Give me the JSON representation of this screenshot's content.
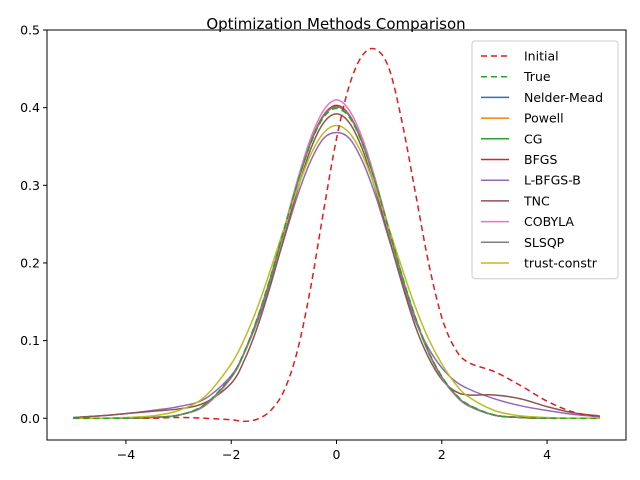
{
  "chart_data": {
    "type": "line",
    "title": "Optimization Methods Comparison",
    "xlabel": "",
    "ylabel": "",
    "xlim": [
      -5.5,
      5.5
    ],
    "ylim": [
      -0.028,
      0.5
    ],
    "xticks": [
      -4,
      -2,
      0,
      2,
      4
    ],
    "yticks": [
      0.0,
      0.1,
      0.2,
      0.3,
      0.4,
      0.5
    ],
    "xtick_labels": [
      "−4",
      "−2",
      "0",
      "2",
      "4"
    ],
    "ytick_labels": [
      "0.0",
      "0.1",
      "0.2",
      "0.3",
      "0.4",
      "0.5"
    ],
    "grid": false,
    "legend_position": "top-right",
    "x": [
      -5,
      -4.5,
      -4,
      -3.5,
      -3,
      -2.5,
      -2,
      -1.75,
      -1.5,
      -1.25,
      -1,
      -0.75,
      -0.5,
      -0.25,
      0,
      0.25,
      0.5,
      0.75,
      1,
      1.25,
      1.5,
      1.75,
      2,
      2.25,
      2.5,
      3,
      3.5,
      4,
      4.5,
      5
    ],
    "series": [
      {
        "name": "Initial",
        "color": "#e41a1c",
        "dash": "6,4",
        "values": [
          0.0,
          0.0,
          0.0,
          0.0,
          0.001,
          0.0,
          -0.002,
          -0.004,
          -0.001,
          0.01,
          0.035,
          0.085,
          0.165,
          0.265,
          0.36,
          0.43,
          0.468,
          0.475,
          0.45,
          0.38,
          0.29,
          0.2,
          0.13,
          0.09,
          0.072,
          0.06,
          0.042,
          0.022,
          0.008,
          0.002
        ]
      },
      {
        "name": "True",
        "color": "#2ca02c",
        "dash": "6,4",
        "values": [
          0.0,
          0.0,
          0.0,
          0.001,
          0.004,
          0.018,
          0.054,
          0.086,
          0.13,
          0.183,
          0.242,
          0.301,
          0.352,
          0.387,
          0.399,
          0.387,
          0.352,
          0.301,
          0.242,
          0.183,
          0.13,
          0.086,
          0.054,
          0.032,
          0.018,
          0.004,
          0.001,
          0.0,
          0.0,
          0.0
        ]
      },
      {
        "name": "Nelder-Mead",
        "color": "#1f77b4",
        "dash": "",
        "values": [
          0.0,
          0.0,
          0.0,
          0.001,
          0.004,
          0.017,
          0.053,
          0.085,
          0.128,
          0.181,
          0.241,
          0.301,
          0.353,
          0.389,
          0.402,
          0.389,
          0.353,
          0.301,
          0.241,
          0.181,
          0.128,
          0.085,
          0.053,
          0.031,
          0.017,
          0.004,
          0.001,
          0.0,
          0.0,
          0.0
        ]
      },
      {
        "name": "Powell",
        "color": "#ff7f0e",
        "dash": "",
        "values": [
          0.0,
          0.0,
          0.0,
          0.001,
          0.004,
          0.017,
          0.053,
          0.085,
          0.128,
          0.181,
          0.241,
          0.301,
          0.353,
          0.389,
          0.401,
          0.389,
          0.353,
          0.301,
          0.241,
          0.181,
          0.128,
          0.085,
          0.053,
          0.031,
          0.017,
          0.004,
          0.001,
          0.0,
          0.0,
          0.0
        ]
      },
      {
        "name": "CG",
        "color": "#2ca02c",
        "dash": "",
        "values": [
          0.0,
          0.0,
          0.0,
          0.001,
          0.004,
          0.017,
          0.053,
          0.085,
          0.128,
          0.181,
          0.241,
          0.301,
          0.353,
          0.389,
          0.401,
          0.389,
          0.353,
          0.301,
          0.241,
          0.181,
          0.128,
          0.085,
          0.053,
          0.031,
          0.017,
          0.004,
          0.001,
          0.0,
          0.0,
          0.0
        ]
      },
      {
        "name": "BFGS",
        "color": "#d62728",
        "dash": "",
        "values": [
          0.0,
          0.0,
          0.0,
          0.001,
          0.004,
          0.017,
          0.053,
          0.085,
          0.129,
          0.182,
          0.242,
          0.302,
          0.354,
          0.39,
          0.403,
          0.39,
          0.354,
          0.302,
          0.242,
          0.182,
          0.129,
          0.085,
          0.053,
          0.031,
          0.017,
          0.004,
          0.001,
          0.0,
          0.0,
          0.0
        ]
      },
      {
        "name": "L-BFGS-B",
        "color": "#9467bd",
        "dash": "",
        "values": [
          0.001,
          0.003,
          0.006,
          0.01,
          0.015,
          0.025,
          0.055,
          0.085,
          0.125,
          0.175,
          0.23,
          0.285,
          0.33,
          0.36,
          0.368,
          0.36,
          0.33,
          0.285,
          0.23,
          0.175,
          0.125,
          0.09,
          0.065,
          0.048,
          0.038,
          0.025,
          0.016,
          0.01,
          0.005,
          0.002
        ]
      },
      {
        "name": "TNC",
        "color": "#8c564b",
        "dash": "",
        "values": [
          0.001,
          0.003,
          0.006,
          0.009,
          0.012,
          0.02,
          0.045,
          0.075,
          0.118,
          0.172,
          0.232,
          0.292,
          0.345,
          0.38,
          0.392,
          0.38,
          0.345,
          0.292,
          0.232,
          0.172,
          0.118,
          0.078,
          0.05,
          0.035,
          0.03,
          0.03,
          0.025,
          0.015,
          0.007,
          0.003
        ]
      },
      {
        "name": "COBYLA",
        "color": "#e377c2",
        "dash": "",
        "values": [
          0.0,
          0.0,
          0.0,
          0.001,
          0.004,
          0.016,
          0.052,
          0.084,
          0.128,
          0.182,
          0.243,
          0.305,
          0.359,
          0.396,
          0.41,
          0.396,
          0.359,
          0.305,
          0.243,
          0.182,
          0.128,
          0.084,
          0.052,
          0.03,
          0.016,
          0.004,
          0.001,
          0.0,
          0.0,
          0.0
        ]
      },
      {
        "name": "SLSQP",
        "color": "#7f7f7f",
        "dash": "",
        "values": [
          0.0,
          0.0,
          0.0,
          0.001,
          0.004,
          0.017,
          0.053,
          0.085,
          0.128,
          0.181,
          0.241,
          0.301,
          0.353,
          0.389,
          0.401,
          0.389,
          0.353,
          0.301,
          0.241,
          0.181,
          0.128,
          0.085,
          0.053,
          0.031,
          0.017,
          0.004,
          0.001,
          0.0,
          0.0,
          0.0
        ]
      },
      {
        "name": "trust-constr",
        "color": "#bcbd22",
        "dash": "",
        "values": [
          0.0,
          0.0,
          0.001,
          0.003,
          0.01,
          0.028,
          0.07,
          0.102,
          0.143,
          0.192,
          0.244,
          0.294,
          0.338,
          0.367,
          0.377,
          0.367,
          0.338,
          0.294,
          0.244,
          0.192,
          0.143,
          0.102,
          0.07,
          0.045,
          0.028,
          0.01,
          0.003,
          0.001,
          0.0,
          0.0
        ]
      }
    ]
  }
}
